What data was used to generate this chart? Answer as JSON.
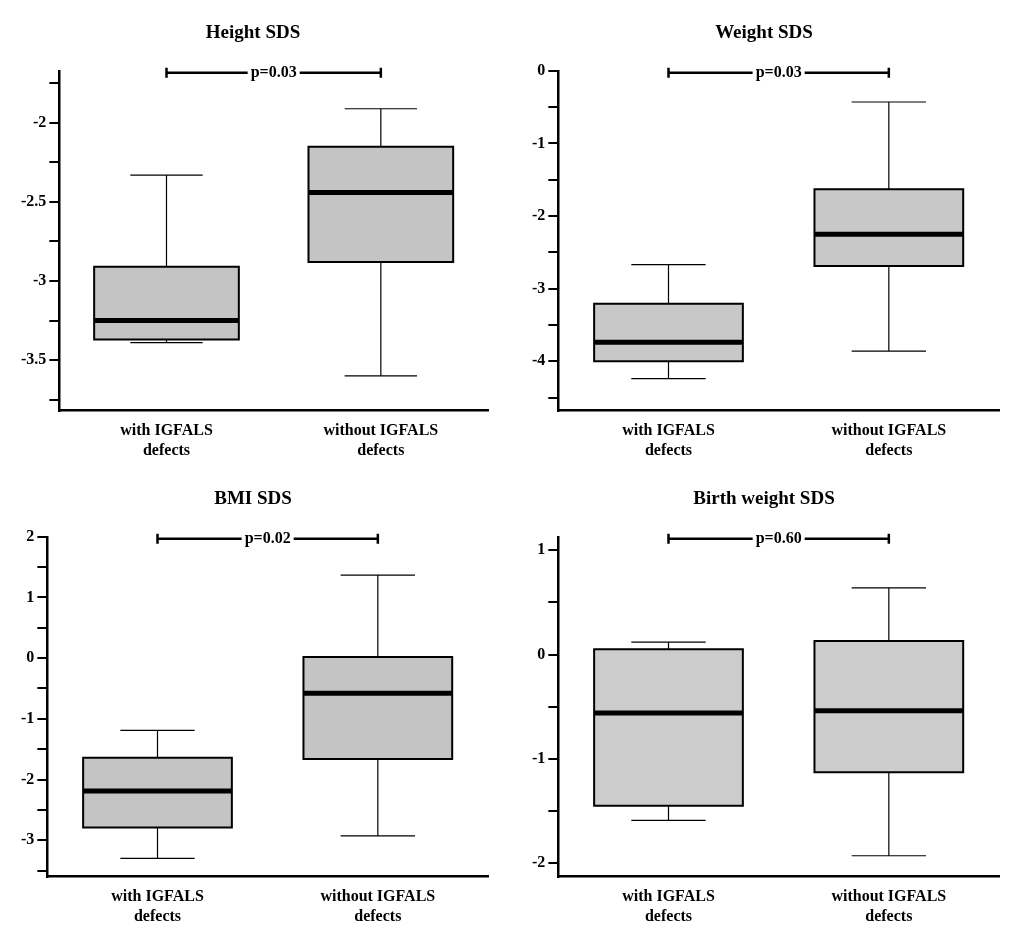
{
  "chart_data": [
    {
      "type": "box",
      "title": "Height SDS",
      "categories": [
        "with IGFALS defects",
        "without IGFALS defects"
      ],
      "color": "#c4c4c4",
      "boxes": [
        {
          "low": -3.39,
          "q1": -3.37,
          "median": -3.25,
          "q3": -2.91,
          "high": -2.33
        },
        {
          "low": -3.6,
          "q1": -2.88,
          "median": -2.44,
          "q3": -2.15,
          "high": -1.91
        }
      ],
      "ylim": [
        -3.82,
        -1.67
      ],
      "yticks": [
        {
          "value": -3.75,
          "label": null
        },
        -3.5,
        {
          "value": -3.25,
          "label": null
        },
        -3,
        {
          "value": -2.75,
          "label": null
        },
        -2.5,
        {
          "value": -2.25,
          "label": null
        },
        -2,
        {
          "value": -1.75,
          "label": null
        }
      ],
      "annotations": [
        "p=0.03"
      ]
    },
    {
      "type": "box",
      "title": "Weight SDS",
      "categories": [
        "with IGFALS defects",
        "without IGFALS defects"
      ],
      "color": "#c8c8c8",
      "boxes": [
        {
          "low": -4.24,
          "q1": -4.0,
          "median": -3.74,
          "q3": -3.21,
          "high": -2.67
        },
        {
          "low": -3.86,
          "q1": -2.69,
          "median": -2.25,
          "q3": -1.63,
          "high": -0.43
        }
      ],
      "ylim": [
        -4.68,
        0
      ],
      "yticks": [
        {
          "value": -4.5,
          "label": null
        },
        -4,
        {
          "value": -3.5,
          "label": null
        },
        -3,
        {
          "value": -2.5,
          "label": null
        },
        -2,
        {
          "value": -1.5,
          "label": null
        },
        -1,
        {
          "value": -0.5,
          "label": null
        },
        0
      ],
      "annotations": [
        "p=0.03"
      ]
    },
    {
      "type": "box",
      "title": "BMI SDS",
      "categories": [
        "with IGFALS defects",
        "without IGFALS defects"
      ],
      "color": "#c4c4c4",
      "boxes": [
        {
          "low": -3.3,
          "q1": -2.79,
          "median": -2.19,
          "q3": -1.64,
          "high": -1.19
        },
        {
          "low": -2.93,
          "q1": -1.66,
          "median": -0.58,
          "q3": 0.02,
          "high": 1.37
        }
      ],
      "ylim": [
        -3.6,
        2
      ],
      "yticks": [
        {
          "value": -3.5,
          "label": null
        },
        -3,
        {
          "value": -2.5,
          "label": null
        },
        -2,
        {
          "value": -1.5,
          "label": null
        },
        -1,
        {
          "value": -0.5,
          "label": null
        },
        0,
        {
          "value": 0.5,
          "label": null
        },
        1,
        {
          "value": 1.5,
          "label": null
        },
        2
      ],
      "annotations": [
        "p=0.02"
      ]
    },
    {
      "type": "box",
      "title": "Birth weight SDS",
      "categories": [
        "with IGFALS defects",
        "without IGFALS defects"
      ],
      "color": "#cccccc",
      "boxes": [
        {
          "low": -1.59,
          "q1": -1.45,
          "median": -0.56,
          "q3": 0.05,
          "high": 0.12
        },
        {
          "low": -1.93,
          "q1": -1.13,
          "median": -0.54,
          "q3": 0.13,
          "high": 0.64
        }
      ],
      "ylim": [
        -2.13,
        1.13
      ],
      "yticks": [
        -2,
        {
          "value": -1.5,
          "label": null
        },
        -1,
        {
          "value": -0.5,
          "label": null
        },
        0,
        {
          "value": 0.5,
          "label": null
        },
        1
      ],
      "annotations": [
        "p=0.60"
      ]
    }
  ]
}
